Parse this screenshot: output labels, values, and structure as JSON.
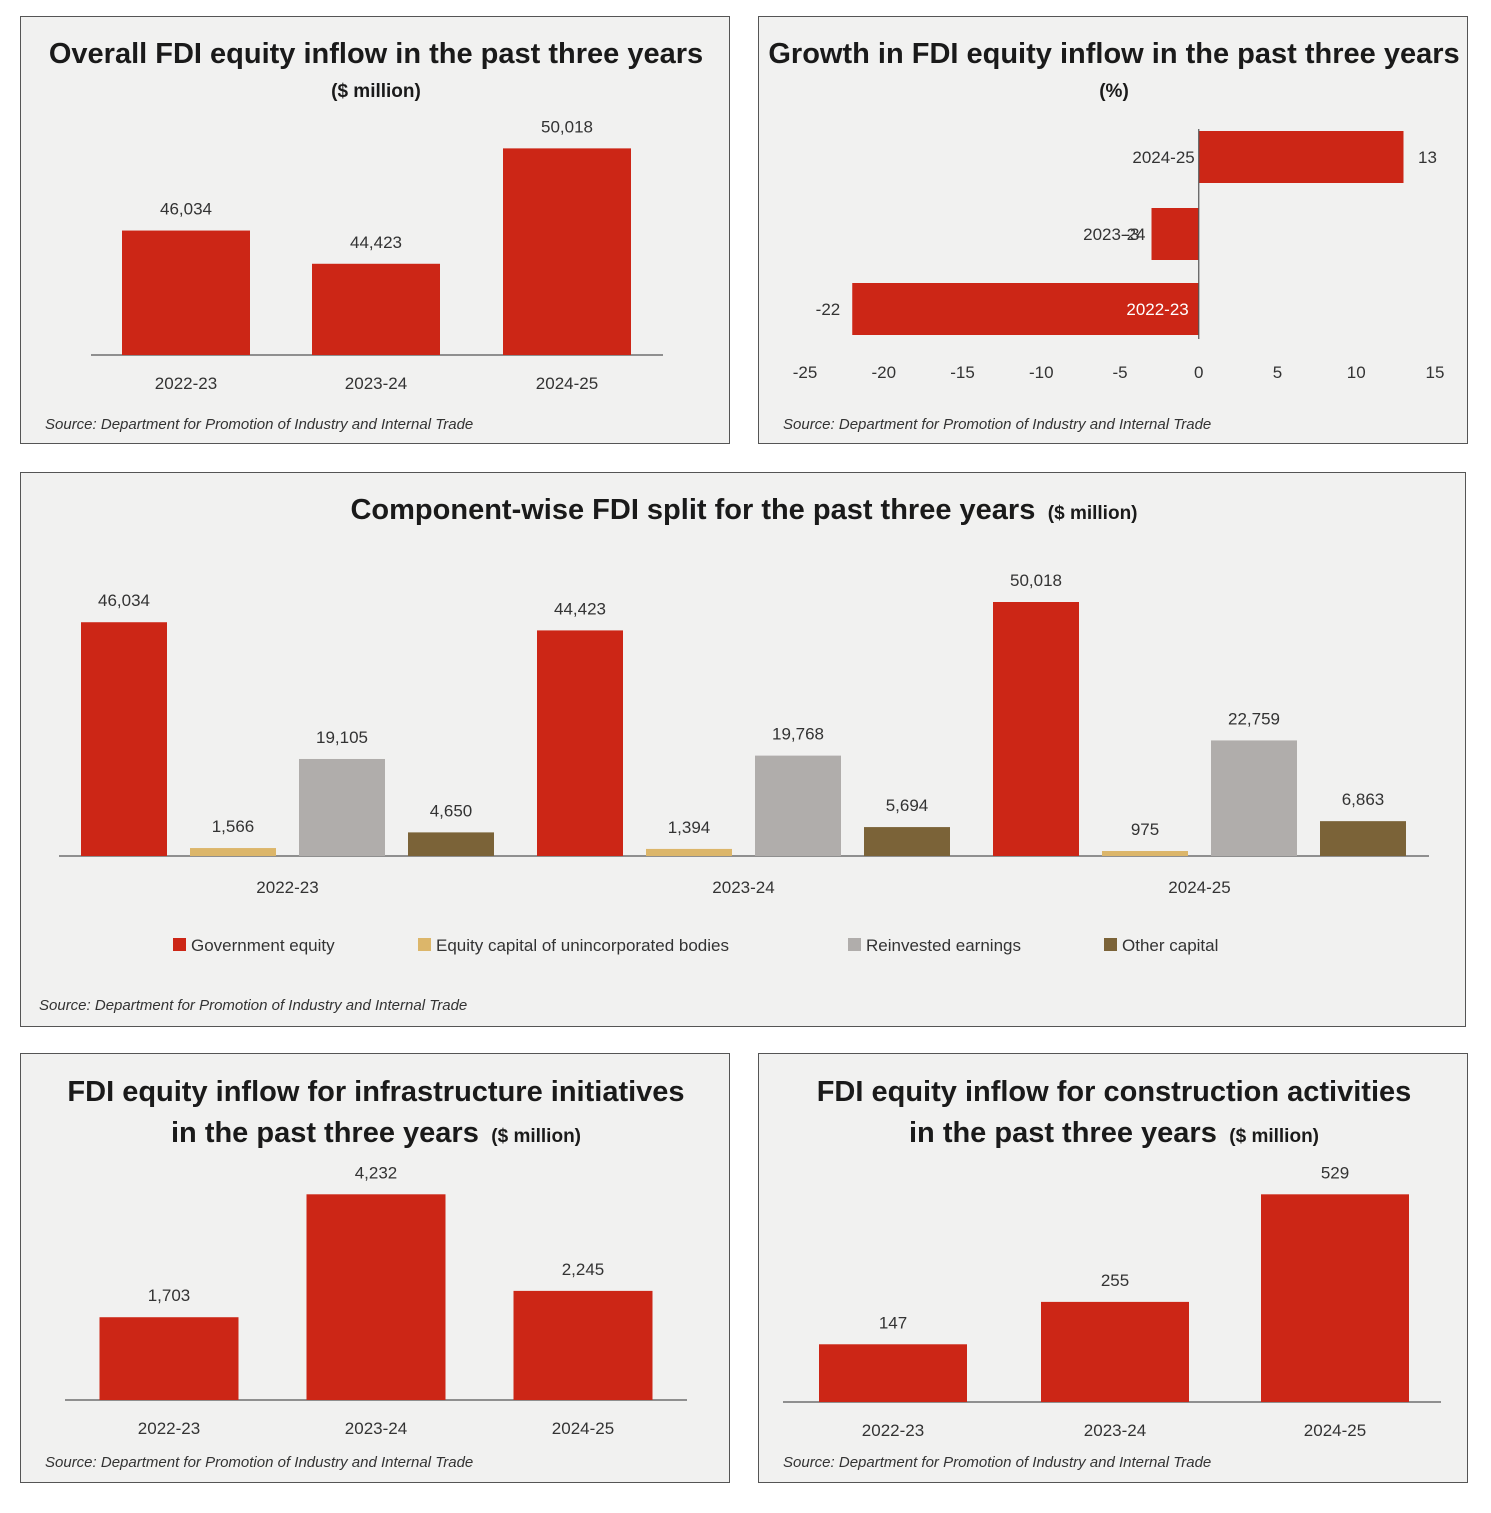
{
  "colors": {
    "government_equity": "#cc2616",
    "equity_unincorporated": "#dcb66a",
    "reinvested_earnings": "#b0adab",
    "other_capital": "#7b6338",
    "panel_bg": "#f1f1f0",
    "axis": "#555555"
  },
  "panels": {
    "overall": {
      "title": "Overall FDI equity inflow in the past three years",
      "unit": "($ million)",
      "source": "Source: Department for Promotion of Industry and Internal Trade"
    },
    "growth": {
      "title": "Growth in FDI equity inflow in the past three years",
      "unit": "(%)",
      "source": "Source: Department for Promotion of Industry and Internal Trade"
    },
    "component": {
      "title": "Component-wise FDI split for the past three years",
      "unit": "($ million)",
      "source": "Source: Department for Promotion of Industry and Internal Trade"
    },
    "infra": {
      "title_line1": "FDI equity inflow for infrastructure initiatives",
      "title_line2": "in the past three years",
      "unit": "($ million)",
      "source": "Source: Department for Promotion of Industry and Internal Trade"
    },
    "construction": {
      "title_line1": "FDI equity inflow for construction activities",
      "title_line2": "in the past three years",
      "unit": "($ million)",
      "source": "Source: Department for Promotion of Industry and Internal Trade"
    }
  },
  "chart_data": [
    {
      "id": "overall",
      "type": "bar",
      "title": "Overall FDI equity inflow in the past three years ($ million)",
      "categories": [
        "2022-23",
        "2023-24",
        "2024-25"
      ],
      "values": [
        46034,
        44423,
        50018
      ],
      "value_labels": [
        "46,034",
        "44,423",
        "50,018"
      ],
      "ylim": [
        40000,
        52000
      ],
      "grid": false
    },
    {
      "id": "growth",
      "type": "bar",
      "orientation": "horizontal",
      "title": "Growth in FDI equity inflow in the past three years (%)",
      "categories": [
        "2024-25",
        "2023-24",
        "2022-23"
      ],
      "values": [
        13,
        -3,
        -22
      ],
      "value_labels": [
        "13",
        "-3",
        "-22"
      ],
      "xlim": [
        -25,
        15
      ],
      "xticks": [
        "-25",
        "-20",
        "-15",
        "-10",
        "-5",
        "0",
        "5",
        "10",
        "15"
      ],
      "grid": false
    },
    {
      "id": "component",
      "type": "bar",
      "title": "Component-wise FDI split for the past three years ($ million)",
      "categories": [
        "2022-23",
        "2023-24",
        "2024-25"
      ],
      "series": [
        {
          "name": "Government equity",
          "values": [
            46034,
            44423,
            50018
          ],
          "labels": [
            "46,034",
            "44,423",
            "50,018"
          ]
        },
        {
          "name": "Equity capital of unincorporated bodies",
          "values": [
            1566,
            1394,
            975
          ],
          "labels": [
            "1,566",
            "1,394",
            "975"
          ]
        },
        {
          "name": "Reinvested earnings",
          "values": [
            19105,
            19768,
            22759
          ],
          "labels": [
            "19,105",
            "19,768",
            "22,759"
          ]
        },
        {
          "name": "Other capital",
          "values": [
            4650,
            5694,
            6863
          ],
          "labels": [
            "4,650",
            "5,694",
            "6,863"
          ]
        }
      ],
      "legend": "bottom",
      "grid": false
    },
    {
      "id": "infra",
      "type": "bar",
      "title": "FDI equity inflow for infrastructure initiatives in the past three years ($ million)",
      "categories": [
        "2022-23",
        "2023-24",
        "2024-25"
      ],
      "values": [
        1703,
        4232,
        2245
      ],
      "value_labels": [
        "1,703",
        "4,232",
        "2,245"
      ],
      "ylim": [
        0,
        4300
      ],
      "grid": false
    },
    {
      "id": "construction",
      "type": "bar",
      "title": "FDI equity inflow for construction activities in the past three years ($ million)",
      "categories": [
        "2022-23",
        "2023-24",
        "2024-25"
      ],
      "values": [
        147,
        255,
        529
      ],
      "value_labels": [
        "147",
        "255",
        "529"
      ],
      "ylim": [
        0,
        540
      ],
      "grid": false
    }
  ]
}
